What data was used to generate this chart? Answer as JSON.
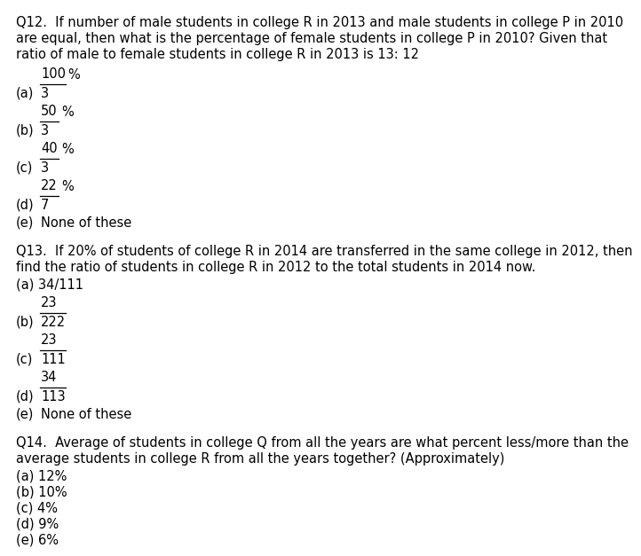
{
  "bg_color": "#ffffff",
  "text_color": "#000000",
  "font_size": 10.5,
  "q12_line1": "Q12.  If number of male students in college R in 2013 and male students in college P in 2010",
  "q12_line2": "are equal, then what is the percentage of female students in college P in 2010? Given that",
  "q12_line3": "ratio of male to female students in college R in 2013 is 13: 12",
  "q12_a_num": "100",
  "q12_a_den": "3",
  "q12_b_num": "50",
  "q12_b_den": "3",
  "q12_c_num": "40",
  "q12_c_den": "3",
  "q12_d_num": "22",
  "q12_d_den": "7",
  "q12_e": "None of these",
  "q13_line1": "Q13.  If 20% of students of college R in 2014 are transferred in the same college in 2012, then",
  "q13_line2": "find the ratio of students in college R in 2012 to the total students in 2014 now.",
  "q13_a": "34/111",
  "q13_b_num": "23",
  "q13_b_den": "222",
  "q13_c_num": "23",
  "q13_c_den": "111",
  "q13_d_num": "34",
  "q13_d_den": "113",
  "q13_e": "None of these",
  "q14_line1": "Q14.  Average of students in college Q from all the years are what percent less/more than the",
  "q14_line2": "average students in college R from all the years together? (Approximately)",
  "q14_a": "(a) 12%",
  "q14_b": "(b) 10%",
  "q14_c": "(c) 4%",
  "q14_d": "(d) 9%",
  "q14_e": "(e) 6%"
}
